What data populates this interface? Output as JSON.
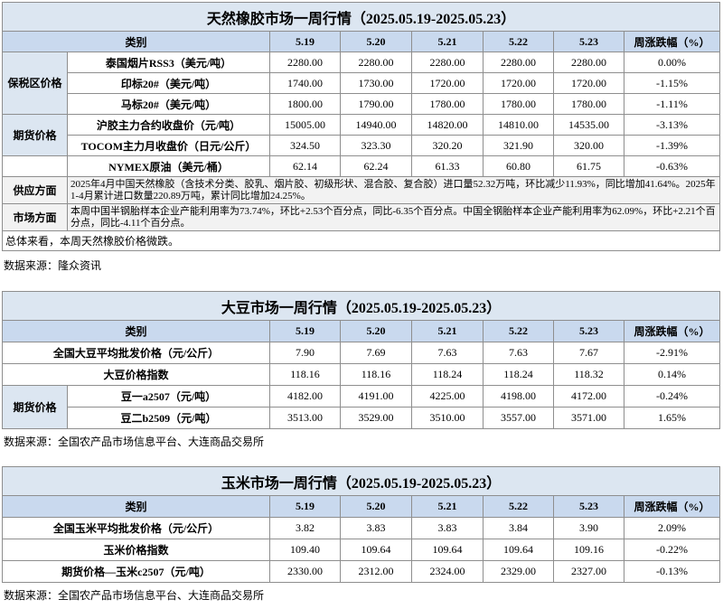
{
  "tables": [
    {
      "title": "天然橡胶市场一周行情（2025.05.19-2025.05.23）",
      "header": [
        "类别",
        "5.19",
        "5.20",
        "5.21",
        "5.22",
        "5.23",
        "周涨跌幅（%）"
      ],
      "groups": [
        {
          "label": "保税区价格",
          "rows": [
            {
              "label": "泰国烟片RSS3（美元/吨）",
              "values": [
                "2280.00",
                "2280.00",
                "2280.00",
                "2280.00",
                "2280.00",
                "0.00%"
              ]
            },
            {
              "label": "印标20#（美元/吨）",
              "values": [
                "1740.00",
                "1730.00",
                "1720.00",
                "1720.00",
                "1720.00",
                "-1.15%"
              ]
            },
            {
              "label": "马标20#（美元/吨）",
              "values": [
                "1800.00",
                "1790.00",
                "1780.00",
                "1780.00",
                "1780.00",
                "-1.11%"
              ]
            }
          ]
        },
        {
          "label": "期货价格",
          "rows": [
            {
              "label": "沪胶主力合约收盘价（元/吨）",
              "values": [
                "15005.00",
                "14940.00",
                "14820.00",
                "14810.00",
                "14535.00",
                "-3.13%"
              ]
            },
            {
              "label": "TOCOM主力月收盘价（日元/公斤）",
              "values": [
                "324.50",
                "323.30",
                "320.20",
                "321.90",
                "320.00",
                "-1.39%"
              ]
            }
          ]
        },
        {
          "rows": [
            {
              "label": "NYMEX原油（美元/桶）",
              "values": [
                "62.14",
                "62.24",
                "61.33",
                "60.80",
                "61.75",
                "-0.63%"
              ]
            }
          ]
        }
      ],
      "notes": [
        {
          "label": "供应方面",
          "text": "2025年4月中国天然橡胶（含技术分类、胶乳、烟片胶、初级形状、混合胶、复合胶）进口量52.32万吨，环比减少11.93%，同比增加41.64%。2025年1-4月累计进口数量220.89万吨，累计同比增加24.25%。"
        },
        {
          "label": "市场方面",
          "text": "本周中国半钢胎样本企业产能利用率为73.74%，环比+2.53个百分点，同比-6.35个百分点。中国全钢胎样本企业产能利用率为62.09%，环比+2.21个百分点，同比-4.11个百分点。"
        }
      ],
      "summary": "总体来看，本周天然橡胶价格微跌。",
      "source": "数据来源：隆众资讯"
    },
    {
      "title": "大豆市场一周行情（2025.05.19-2025.05.23）",
      "header": [
        "类别",
        "5.19",
        "5.20",
        "5.21",
        "5.22",
        "5.23",
        "周涨跌幅（%）"
      ],
      "groups": [
        {
          "rows": [
            {
              "label": "全国大豆平均批发价格（元/公斤）",
              "values": [
                "7.90",
                "7.69",
                "7.63",
                "7.63",
                "7.67",
                "-2.91%"
              ]
            }
          ]
        },
        {
          "rows": [
            {
              "label": "大豆价格指数",
              "values": [
                "118.16",
                "118.16",
                "118.24",
                "118.24",
                "118.32",
                "0.14%"
              ]
            }
          ]
        },
        {
          "label": "期货价格",
          "rows": [
            {
              "label": "豆一a2507（元/吨）",
              "values": [
                "4182.00",
                "4191.00",
                "4225.00",
                "4198.00",
                "4172.00",
                "-0.24%"
              ]
            },
            {
              "label": "豆二b2509（元/吨）",
              "values": [
                "3513.00",
                "3529.00",
                "3510.00",
                "3557.00",
                "3571.00",
                "1.65%"
              ]
            }
          ]
        }
      ],
      "source": "数据来源：全国农产品市场信息平台、大连商品交易所"
    },
    {
      "title": "玉米市场一周行情（2025.05.19-2025.05.23）",
      "header": [
        "类别",
        "5.19",
        "5.20",
        "5.21",
        "5.22",
        "5.23",
        "周涨跌幅（%）"
      ],
      "groups": [
        {
          "rows": [
            {
              "label": "全国玉米平均批发价格（元/公斤）",
              "values": [
                "3.82",
                "3.83",
                "3.83",
                "3.84",
                "3.90",
                "2.09%"
              ]
            }
          ]
        },
        {
          "rows": [
            {
              "label": "玉米价格指数",
              "values": [
                "109.40",
                "109.64",
                "109.64",
                "109.64",
                "109.16",
                "-0.22%"
              ]
            }
          ]
        },
        {
          "rows": [
            {
              "label": "期货价格—玉米c2507（元/吨）",
              "values": [
                "2330.00",
                "2312.00",
                "2324.00",
                "2329.00",
                "2327.00",
                "-0.13%"
              ]
            }
          ]
        }
      ],
      "source": "数据来源：全国农产品市场信息平台、大连商品交易所"
    }
  ]
}
